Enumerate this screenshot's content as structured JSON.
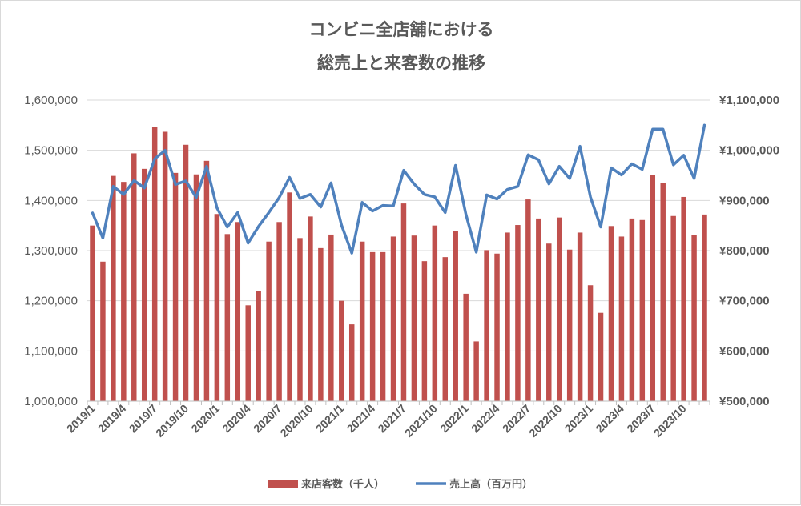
{
  "chart_data": {
    "type": "bar+line",
    "title_lines": [
      "コンビニ全店舗における",
      "総売上と来客数の推移"
    ],
    "y_left": {
      "min": 1000000,
      "max": 1600000,
      "step": 100000,
      "tick_labels": [
        "1,000,000",
        "1,100,000",
        "1,200,000",
        "1,300,000",
        "1,400,000",
        "1,500,000",
        "1,600,000"
      ]
    },
    "y_right": {
      "min": 500000,
      "max": 1100000,
      "step": 100000,
      "tick_labels": [
        "¥500,000",
        "¥600,000",
        "¥700,000",
        "¥800,000",
        "¥900,000",
        "¥1,000,000",
        "¥1,100,000"
      ]
    },
    "x_tick_labels": [
      "2019/1",
      "2019/4",
      "2019/7",
      "2019/10",
      "2020/1",
      "2020/4",
      "2020/7",
      "2020/10",
      "2021/1",
      "2021/4",
      "2021/7",
      "2021/10",
      "2022/1",
      "2022/4",
      "2022/7",
      "2022/10",
      "2023/1",
      "2023/4",
      "2023/7",
      "2023/10"
    ],
    "grid": true,
    "legend_position": "bottom",
    "series": [
      {
        "name": "来店客数（千人）",
        "kind": "bar",
        "axis": "left",
        "color": "#c0504d",
        "values": [
          1350000,
          1278000,
          1449000,
          1437000,
          1494000,
          1463000,
          1546000,
          1537000,
          1455000,
          1511000,
          1452000,
          1479000,
          1373000,
          1333000,
          1357000,
          1191000,
          1219000,
          1318000,
          1357000,
          1416000,
          1325000,
          1368000,
          1305000,
          1332000,
          1200000,
          1153000,
          1318000,
          1297000,
          1297000,
          1328000,
          1394000,
          1330000,
          1279000,
          1350000,
          1287000,
          1339000,
          1214000,
          1119000,
          1301000,
          1294000,
          1336000,
          1351000,
          1402000,
          1364000,
          1314000,
          1366000,
          1302000,
          1336000,
          1231000,
          1176000,
          1349000,
          1328000,
          1364000,
          1361000,
          1450000,
          1435000,
          1369000,
          1407000,
          1331000,
          1372000
        ]
      },
      {
        "name": "売上高（百万円）",
        "kind": "line",
        "axis": "right",
        "color": "#4f81bd",
        "values": [
          875000,
          825000,
          928000,
          912000,
          940000,
          925000,
          983000,
          1000000,
          932000,
          939000,
          906000,
          968000,
          885000,
          847000,
          876000,
          815000,
          848000,
          876000,
          906000,
          946000,
          904000,
          912000,
          887000,
          935000,
          851000,
          795000,
          896000,
          879000,
          890000,
          889000,
          960000,
          933000,
          912000,
          907000,
          876000,
          970000,
          872000,
          797000,
          911000,
          903000,
          922000,
          928000,
          991000,
          981000,
          933000,
          968000,
          944000,
          1008000,
          907000,
          847000,
          965000,
          951000,
          973000,
          962000,
          1042000,
          1042000,
          971000,
          990000,
          944000,
          1050000
        ]
      }
    ]
  }
}
